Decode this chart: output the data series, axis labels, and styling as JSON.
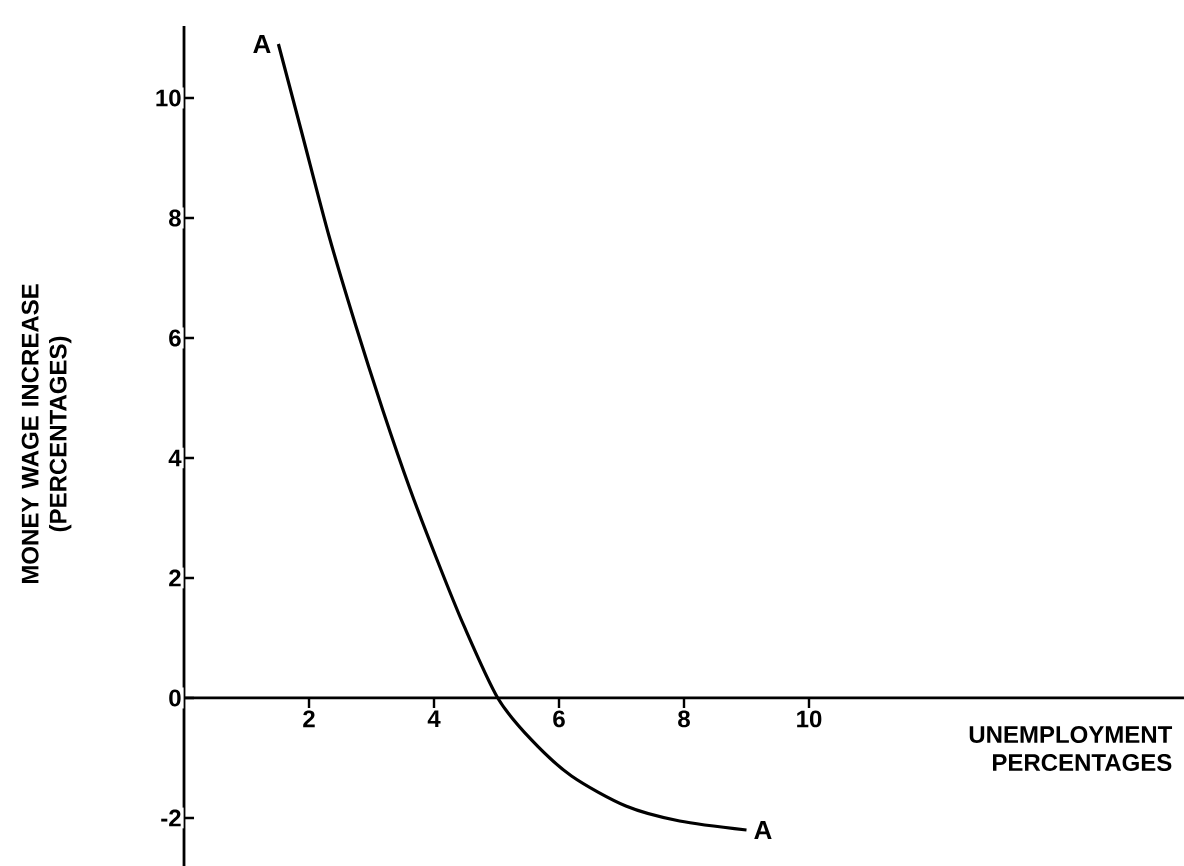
{
  "chart_data": {
    "type": "line",
    "xlabel": "UNEMPLOYMENT PERCENTAGES",
    "ylabel": "MONEY WAGE INCREASE (PERCENTAGES)",
    "x": [
      1.51,
      1.89,
      2.32,
      2.75,
      3.18,
      3.61,
      4.05,
      4.48,
      5.02,
      5.56,
      6.2,
      7.07,
      7.93,
      9.0
    ],
    "series": [
      {
        "color": "#000000",
        "values": [
          10.9,
          9.4,
          7.7,
          6.2,
          4.8,
          3.5,
          2.3,
          1.2,
          0,
          -0.7,
          -1.3,
          -1.8,
          -2.05,
          -2.2
        ]
      }
    ],
    "xlim": [
      0,
      16
    ],
    "ylim": [
      -2.8,
      11.2
    ],
    "xticks": [
      2,
      4,
      6,
      8,
      10
    ],
    "yticks": [
      -2,
      0,
      2,
      4,
      6,
      8,
      10
    ],
    "annotations": [
      {
        "text": "A",
        "x": 1.51,
        "y": 10.9
      },
      {
        "text": "A",
        "x": 9.0,
        "y": -2.2
      }
    ],
    "grid": false,
    "legend": false,
    "marker": "none",
    "line_style": "solid"
  }
}
